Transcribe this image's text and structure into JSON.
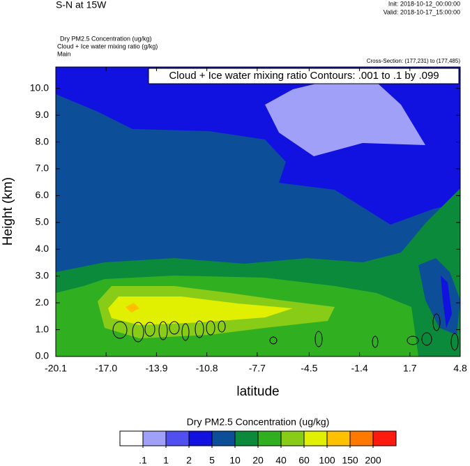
{
  "header": {
    "title": "S-N at 15W",
    "init": "Init: 2018-10-12_00:00:00",
    "valid": "Valid: 2018-10-17_15:00:00",
    "fields": [
      "Dry PM2.5 Concentration   (ug/kg)",
      "Cloud + Ice water mixing ratio   (g/kg)",
      "Main"
    ],
    "cross_section": "Cross-Section: (177,231) to (177,485)"
  },
  "chart_data": {
    "type": "contour",
    "annotation": "Cloud + Ice water mixing ratio Contours: .001 to .1 by .099",
    "xlabel": "latitude",
    "ylabel": "Height (km)",
    "xlim": [
      -20.1,
      4.8
    ],
    "ylim": [
      0,
      10.8
    ],
    "xticks": [
      -20.1,
      {
        "value": -17,
        "label": "-17.0"
      },
      -13.9,
      -10.8,
      -7.7,
      -4.5,
      -1.4,
      1.7,
      4.8
    ],
    "yticks": [
      {
        "value": 0,
        "label": "0.0"
      },
      {
        "value": 1,
        "label": "1.0"
      },
      {
        "value": 2,
        "label": "2.0"
      },
      {
        "value": 3,
        "label": "3.0"
      },
      {
        "value": 4,
        "label": "4.0"
      },
      {
        "value": 5,
        "label": "5.0"
      },
      {
        "value": 6,
        "label": "6.0"
      },
      {
        "value": 7,
        "label": "7.0"
      },
      {
        "value": 8,
        "label": "8.0"
      },
      {
        "value": 9,
        "label": "9.0"
      },
      {
        "value": 10,
        "label": "10.0"
      }
    ],
    "colorbar": {
      "title": "Dry PM2.5 Concentration  (ug/kg)",
      "levels": [
        {
          "value": 0.1,
          "label": ".1"
        },
        1,
        2,
        5,
        10,
        20,
        40,
        60,
        100,
        150,
        200
      ],
      "colors": [
        "#ffffff",
        "#a0a0f8",
        "#5050f0",
        "#1212e0",
        "#0c4e98",
        "#0a8a3a",
        "#30b020",
        "#88cc18",
        "#e0f000",
        "#ffc000",
        "#ff7800",
        "#ff1a10"
      ]
    }
  }
}
